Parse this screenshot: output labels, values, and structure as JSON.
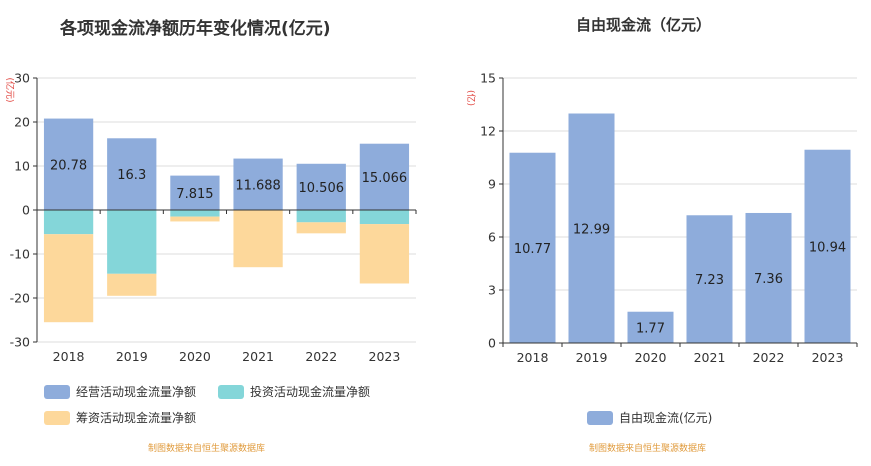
{
  "chart_data": [
    {
      "type": "bar",
      "stacked": true,
      "title": "各项现金流净额历年变化情况(亿元)",
      "ylabel": "(亿元)",
      "ylim": [
        -30,
        30
      ],
      "yticks": [
        -30,
        -20,
        -10,
        0,
        10,
        20,
        30
      ],
      "categories": [
        "2018",
        "2019",
        "2020",
        "2021",
        "2022",
        "2023"
      ],
      "series": [
        {
          "name": "经营活动现金流量净额",
          "color": "#8eacdb",
          "values": [
            20.78,
            16.3,
            7.815,
            11.688,
            10.506,
            15.066
          ],
          "labels": [
            "20.78",
            "16.3",
            "7.815",
            "11.688",
            "10.506",
            "15.066"
          ]
        },
        {
          "name": "投资活动现金流量净额",
          "color": "#84d6d9",
          "values": [
            -5.5,
            -14.5,
            -1.5,
            0,
            -2.8,
            -3.2
          ]
        },
        {
          "name": "筹资活动现金流量净额",
          "color": "#fdd89b",
          "values": [
            -20.0,
            -5.0,
            -1.1,
            -13.0,
            -2.5,
            -13.5
          ]
        }
      ],
      "legend_position": "bottom",
      "source": "制图数据来自恒生聚源数据库"
    },
    {
      "type": "bar",
      "title": "自由现金流（亿元）",
      "ylabel": "(亿)",
      "ylim": [
        0,
        15
      ],
      "yticks": [
        0,
        3,
        6,
        9,
        12,
        15
      ],
      "categories": [
        "2018",
        "2019",
        "2020",
        "2021",
        "2022",
        "2023"
      ],
      "series": [
        {
          "name": "自由现金流(亿元)",
          "color": "#8eacdb",
          "values": [
            10.77,
            12.99,
            1.77,
            7.23,
            7.36,
            10.94
          ],
          "labels": [
            "10.77",
            "12.99",
            "1.77",
            "7.23",
            "7.36",
            "10.94"
          ]
        }
      ],
      "legend_position": "bottom",
      "source": "制图数据来自恒生聚源数据库"
    }
  ]
}
